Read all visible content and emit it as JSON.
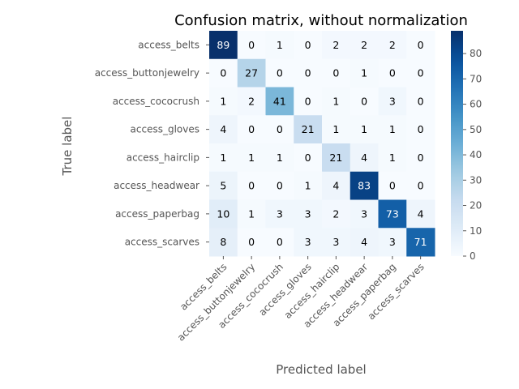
{
  "chart_data": {
    "type": "heatmap",
    "title": "Confusion matrix, without normalization",
    "xlabel": "Predicted label",
    "ylabel": "True label",
    "classes": [
      "access_belts",
      "access_buttonjewelry",
      "access_cococrush",
      "access_gloves",
      "access_hairclip",
      "access_headwear",
      "access_paperbag",
      "access_scarves"
    ],
    "matrix": [
      [
        89,
        0,
        1,
        0,
        2,
        2,
        2,
        0
      ],
      [
        0,
        27,
        0,
        0,
        0,
        1,
        0,
        0
      ],
      [
        1,
        2,
        41,
        0,
        1,
        0,
        3,
        0
      ],
      [
        4,
        0,
        0,
        21,
        1,
        1,
        1,
        0
      ],
      [
        1,
        1,
        1,
        0,
        21,
        4,
        1,
        0
      ],
      [
        5,
        0,
        0,
        1,
        4,
        83,
        0,
        0
      ],
      [
        10,
        1,
        3,
        3,
        2,
        3,
        73,
        4
      ],
      [
        8,
        0,
        0,
        3,
        3,
        4,
        3,
        71
      ]
    ],
    "colormap": "Blues",
    "color_range": [
      0,
      89
    ],
    "colorbar_ticks": [
      0,
      10,
      20,
      30,
      40,
      50,
      60,
      70,
      80
    ]
  }
}
